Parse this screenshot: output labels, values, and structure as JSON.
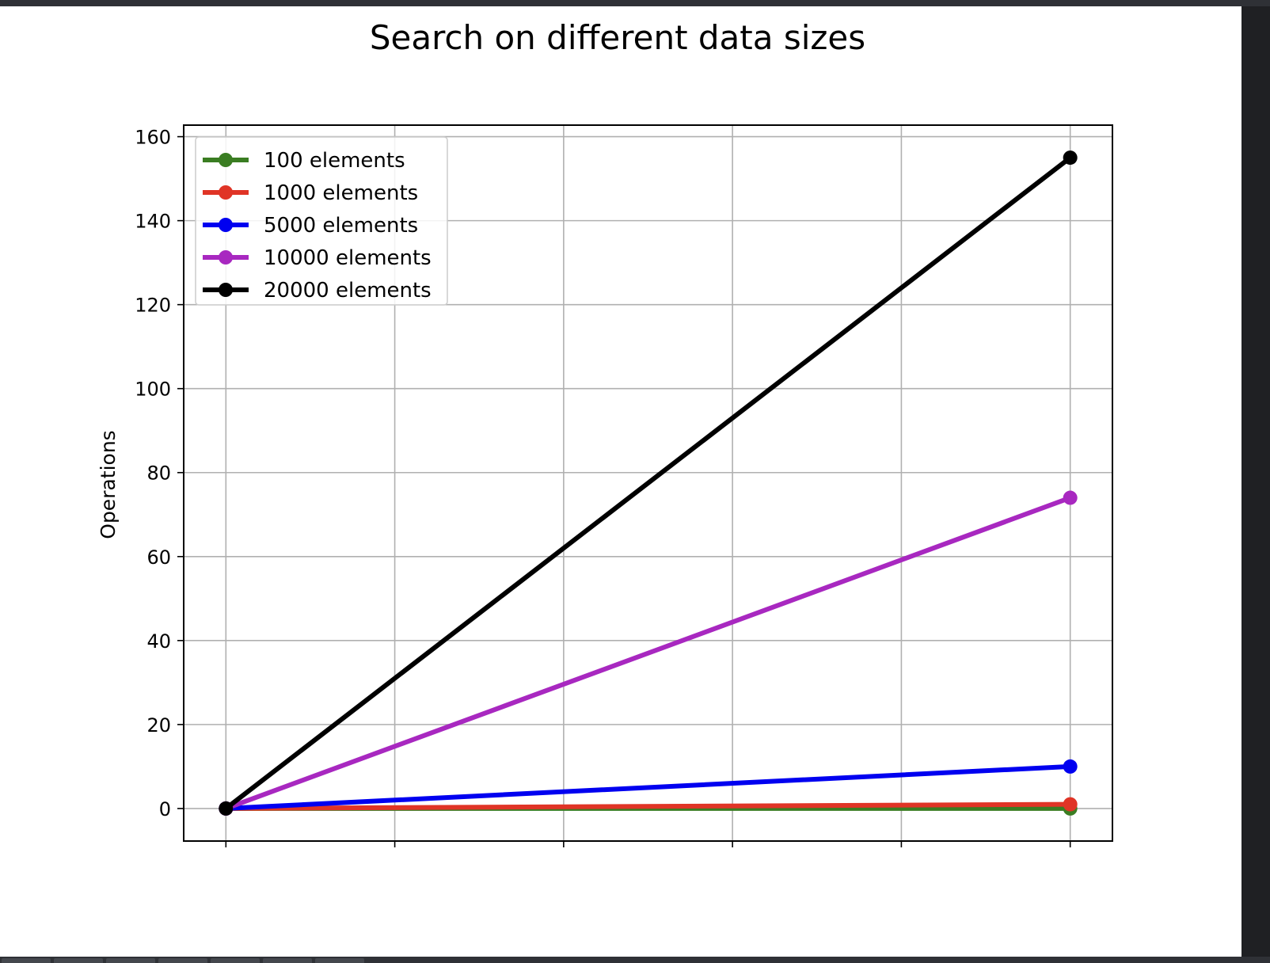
{
  "chart_data": {
    "type": "line",
    "title": "Search on different data sizes",
    "xlabel": "",
    "ylabel": "Operations",
    "x": [
      0,
      1
    ],
    "xlim": [
      -0.05,
      1.05
    ],
    "ylim": [
      -7.75,
      162.75
    ],
    "yticks": [
      0,
      20,
      40,
      60,
      80,
      100,
      120,
      140,
      160
    ],
    "grid": true,
    "legend_position": "upper-left",
    "series": [
      {
        "name": "100 elements",
        "color": "#3a7d22",
        "values": [
          0,
          0
        ]
      },
      {
        "name": "1000 elements",
        "color": "#e03426",
        "values": [
          0,
          1
        ]
      },
      {
        "name": "5000 elements",
        "color": "#0000f0",
        "values": [
          0,
          10
        ]
      },
      {
        "name": "10000 elements",
        "color": "#a828c0",
        "values": [
          0,
          74
        ]
      },
      {
        "name": "20000 elements",
        "color": "#000000",
        "values": [
          0,
          155
        ]
      }
    ]
  }
}
